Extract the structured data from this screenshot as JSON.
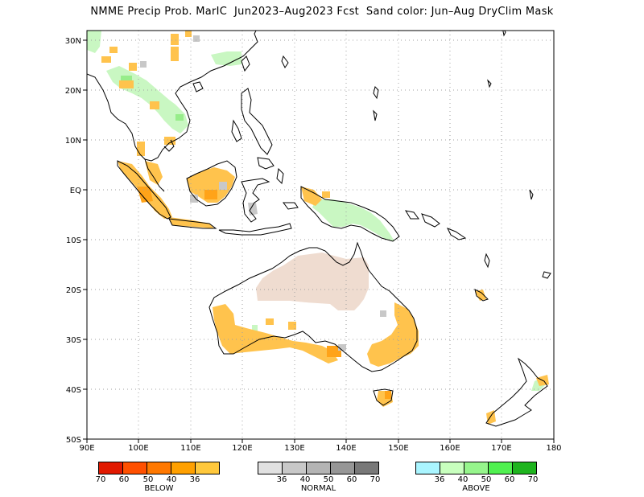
{
  "title": "NMME Precip Prob. MarIC  Jun2023–Aug2023 Fcst  Sand color: Jun–Aug DryClim Mask",
  "map": {
    "lon_range": [
      90,
      180
    ],
    "lat_range": [
      -50,
      32
    ],
    "lon_labels": [
      "90E",
      "100E",
      "110E",
      "120E",
      "130E",
      "140E",
      "150E",
      "160E",
      "170E",
      "180"
    ],
    "lat_labels": [
      "30N",
      "20N",
      "10N",
      "EQ",
      "10S",
      "20S",
      "30S",
      "40S",
      "50S"
    ],
    "grid": "dotted",
    "colors": {
      "below_light": "#ffc34d",
      "below": "#ffa319",
      "above_light": "#c9f7c2",
      "above": "#97ed8a",
      "normal": "#c8c8c8",
      "dry_mask": "#efdcd0",
      "land_outline": "#000000"
    }
  },
  "legends": [
    {
      "name": "BELOW",
      "colors": [
        "#e11900",
        "#ff5000",
        "#ff7800",
        "#ffa000",
        "#ffc83c"
      ],
      "labels": [
        "70",
        "60",
        "50",
        "40",
        "36"
      ]
    },
    {
      "name": "NORMAL",
      "colors": [
        "#e1e1e1",
        "#c8c8c8",
        "#b4b4b4",
        "#969696",
        "#787878"
      ],
      "labels": [
        "36",
        "40",
        "50",
        "60",
        "70"
      ]
    },
    {
      "name": "ABOVE",
      "colors": [
        "#aaf5ff",
        "#c8ffbe",
        "#96f58c",
        "#50f050",
        "#1eb41e"
      ],
      "labels": [
        "36",
        "40",
        "50",
        "60",
        "70"
      ]
    }
  ]
}
